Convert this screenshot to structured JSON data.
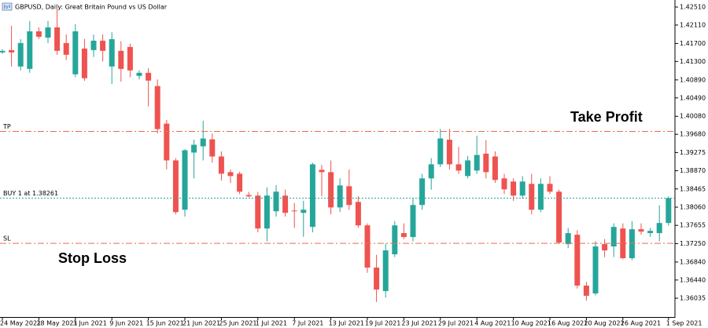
{
  "chart_data": {
    "type": "candlestick",
    "title": "GBPUSD, Daily:  Great Britain Pound vs US Dollar",
    "categories": [
      "24 May 2021",
      null,
      null,
      null,
      "28 May 2021",
      null,
      null,
      null,
      "3 Jun 2021",
      null,
      null,
      null,
      "9 Jun 2021",
      null,
      null,
      null,
      "15 Jun 2021",
      null,
      null,
      null,
      "21 Jun 2021",
      null,
      null,
      null,
      "25 Jun 2021",
      null,
      null,
      null,
      "1 Jul 2021",
      null,
      null,
      null,
      "7 Jul 2021",
      null,
      null,
      null,
      "13 Jul 2021",
      null,
      null,
      null,
      "19 Jul 2021",
      null,
      null,
      null,
      "23 Jul 2021",
      null,
      null,
      null,
      "29 Jul 2021",
      null,
      null,
      null,
      "4 Aug 2021",
      null,
      null,
      null,
      "10 Aug 2021",
      null,
      null,
      null,
      "16 Aug 2021",
      null,
      null,
      null,
      "20 Aug 2021",
      null,
      null,
      null,
      "26 Aug 2021",
      null,
      null,
      null,
      null,
      "1 Sep 2021"
    ],
    "open": [
      1.41501,
      1.41553,
      1.41188,
      1.41135,
      1.41971,
      1.41831,
      1.42058,
      1.4171,
      1.41014,
      1.41588,
      1.41553,
      1.41762,
      1.41188,
      1.41536,
      1.41623,
      1.40979,
      1.41048,
      1.40753,
      1.39917,
      1.391,
      1.38003,
      1.39274,
      1.39413,
      1.39569,
      1.39187,
      1.38839,
      1.38804,
      1.3833,
      1.38317,
      1.37586,
      1.37969,
      1.38317,
      1.37985,
      1.37934,
      1.37621,
      1.38891,
      1.38839,
      1.38054,
      1.38526,
      1.38177,
      1.37655,
      1.36716,
      1.36194,
      1.37012,
      1.37483,
      1.37396,
      1.38108,
      1.387,
      1.39013,
      1.3956,
      1.39013,
      1.38752,
      1.38874,
      1.3925,
      1.39187,
      1.387,
      1.3863,
      1.38317,
      1.38578,
      1.38003,
      1.38578,
      1.38404,
      1.37238,
      1.37447,
      1.36316,
      1.36142,
      1.37238,
      1.37186,
      1.37586,
      1.36925,
      1.37569,
      1.37483,
      1.37483,
      1.37708
    ],
    "high": [
      1.4157,
      1.42092,
      1.41797,
      1.422,
      1.42058,
      1.422,
      1.4246,
      1.419,
      1.4213,
      1.418,
      1.419,
      1.419,
      1.4195,
      1.4175,
      1.417,
      1.411,
      1.4115,
      1.409,
      1.4,
      1.3915,
      1.3935,
      1.3956,
      1.3998,
      1.397,
      1.393,
      1.389,
      1.3885,
      1.384,
      1.384,
      1.385,
      1.3855,
      1.3845,
      1.3815,
      1.382,
      1.3905,
      1.39,
      1.391,
      1.387,
      1.389,
      1.383,
      1.377,
      1.37,
      1.3725,
      1.3775,
      1.377,
      1.3825,
      1.388,
      1.3915,
      1.398,
      1.398,
      1.394,
      1.392,
      1.3965,
      1.3955,
      1.393,
      1.388,
      1.387,
      1.3875,
      1.388,
      1.387,
      1.3875,
      1.3845,
      1.376,
      1.3755,
      1.364,
      1.373,
      1.3735,
      1.377,
      1.377,
      1.3775,
      1.377,
      1.376,
      1.381,
      1.383
    ],
    "low": [
      1.4147,
      1.41188,
      1.41101,
      1.41048,
      1.418,
      1.4171,
      1.4145,
      1.4133,
      1.4095,
      1.4087,
      1.414,
      1.413,
      1.408,
      1.4085,
      1.4095,
      1.409,
      1.403,
      1.397,
      1.389,
      1.379,
      1.3785,
      1.387,
      1.391,
      1.3905,
      1.3865,
      1.386,
      1.3835,
      1.3828,
      1.375,
      1.373,
      1.3785,
      1.3785,
      1.376,
      1.374,
      1.375,
      1.383,
      1.379,
      1.3795,
      1.38,
      1.376,
      1.366,
      1.3595,
      1.3605,
      1.3695,
      1.3735,
      1.373,
      1.38,
      1.3845,
      1.3895,
      1.389,
      1.388,
      1.387,
      1.388,
      1.387,
      1.386,
      1.3835,
      1.382,
      1.3825,
      1.379,
      1.3795,
      1.3835,
      1.3725,
      1.3715,
      1.3625,
      1.3598,
      1.361,
      1.3695,
      1.3695,
      1.369,
      1.3688,
      1.3745,
      1.374,
      1.373,
      1.3765
    ],
    "close": [
      1.41536,
      1.41501,
      1.4171,
      1.41971,
      1.4185,
      1.42058,
      1.41536,
      1.41449,
      1.41971,
      1.40927,
      1.41762,
      1.41536,
      1.41797,
      1.41135,
      1.41101,
      1.41048,
      1.40874,
      1.39796,
      1.391,
      1.3795,
      1.39326,
      1.39448,
      1.39587,
      1.39187,
      1.38804,
      1.38752,
      1.38404,
      1.383,
      1.37586,
      1.38317,
      1.38404,
      1.37934,
      1.37969,
      1.38003,
      1.39013,
      1.38839,
      1.38054,
      1.38543,
      1.38108,
      1.37655,
      1.36716,
      1.36229,
      1.37099,
      1.37655,
      1.37396,
      1.38108,
      1.387,
      1.39013,
      1.39587,
      1.39013,
      1.38874,
      1.391,
      1.39221,
      1.38839,
      1.38665,
      1.38456,
      1.38317,
      1.3863,
      1.38003,
      1.38578,
      1.38404,
      1.37273,
      1.37483,
      1.36316,
      1.3609,
      1.37186,
      1.37099,
      1.37621,
      1.36925,
      1.37569,
      1.37517,
      1.37534,
      1.37708,
      1.38261
    ],
    "up_color": "#26a69a",
    "down_color": "#ef5350",
    "ylim": [
      1.35617,
      1.42667
    ],
    "yticks": [
      {
        "value": 1.4251,
        "label": "1.42510"
      },
      {
        "value": 1.4211,
        "label": "1.42110"
      },
      {
        "value": 1.417,
        "label": "1.41700"
      },
      {
        "value": 1.413,
        "label": "1.41300"
      },
      {
        "value": 1.4089,
        "label": "1.40890"
      },
      {
        "value": 1.4049,
        "label": "1.40490"
      },
      {
        "value": 1.4008,
        "label": "1.40080"
      },
      {
        "value": 1.3968,
        "label": "1.39680"
      },
      1.39275,
      {
        "value": 1.3887,
        "label": "1.38870"
      },
      1.38465,
      {
        "value": 1.3806,
        "label": "1.38060"
      },
      1.37655,
      {
        "value": 1.3725,
        "label": "1.37250"
      },
      {
        "value": 1.3684,
        "label": "1.36840"
      },
      {
        "value": 1.3644,
        "label": "1.36440"
      },
      1.36035
    ],
    "levels": [
      {
        "label": "TP",
        "value": 1.39743,
        "color": "#e8704c"
      },
      {
        "label": "BUY 1 at 1.38261",
        "value": 1.38261,
        "color": "#2aa3a0"
      },
      {
        "label": "SL",
        "value": 1.37255,
        "color": "#e8704c"
      }
    ],
    "annotations": [
      {
        "text": "Take Profit",
        "color": "#6db33f"
      },
      {
        "text": "Stop Loss",
        "color": "#e8401c"
      }
    ]
  }
}
